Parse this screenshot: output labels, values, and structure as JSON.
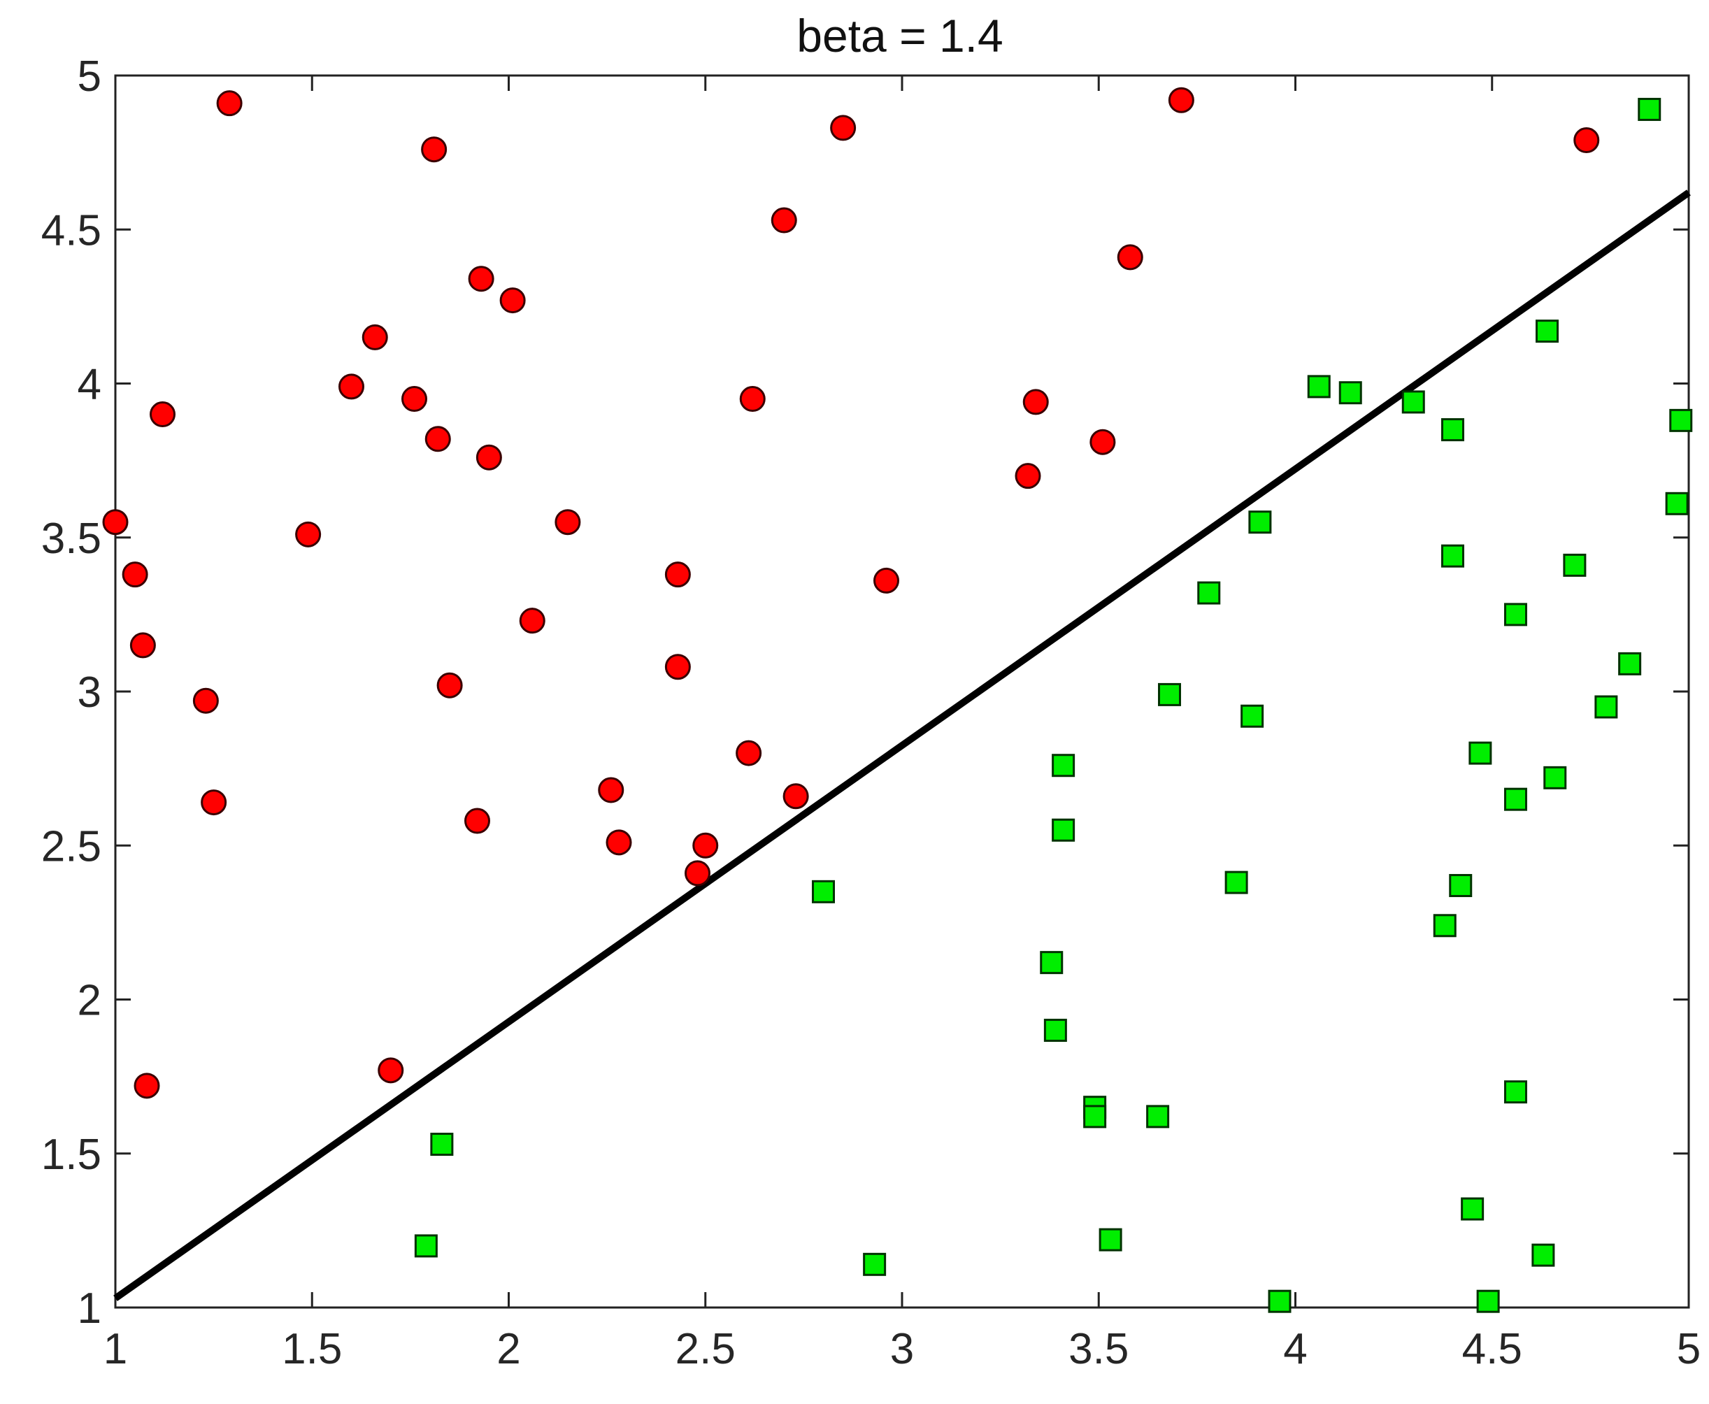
{
  "chart_data": {
    "type": "scatter",
    "title": "beta = 1.4",
    "xlabel": "",
    "ylabel": "",
    "xlim": [
      1,
      5
    ],
    "ylim": [
      1,
      5
    ],
    "xticks": [
      "1",
      "1.5",
      "2",
      "2.5",
      "3",
      "3.5",
      "4",
      "4.5",
      "5"
    ],
    "yticks": [
      "1",
      "1.5",
      "2",
      "2.5",
      "3",
      "3.5",
      "4",
      "4.5",
      "5"
    ],
    "grid": false,
    "legend": "none",
    "series": [
      {
        "marker": "circle",
        "color": "#ff0000",
        "points": [
          [
            1.29,
            4.91
          ],
          [
            1.81,
            4.76
          ],
          [
            2.85,
            4.83
          ],
          [
            3.71,
            4.92
          ],
          [
            4.74,
            4.79
          ],
          [
            2.7,
            4.53
          ],
          [
            1.93,
            4.34
          ],
          [
            2.01,
            4.27
          ],
          [
            3.58,
            4.41
          ],
          [
            1.66,
            4.15
          ],
          [
            1.6,
            3.99
          ],
          [
            1.76,
            3.95
          ],
          [
            1.12,
            3.9
          ],
          [
            2.62,
            3.95
          ],
          [
            3.34,
            3.94
          ],
          [
            1.82,
            3.82
          ],
          [
            1.95,
            3.76
          ],
          [
            3.51,
            3.81
          ],
          [
            3.32,
            3.7
          ],
          [
            1.0,
            3.55
          ],
          [
            1.49,
            3.51
          ],
          [
            2.15,
            3.55
          ],
          [
            1.05,
            3.38
          ],
          [
            2.43,
            3.38
          ],
          [
            2.96,
            3.36
          ],
          [
            2.06,
            3.23
          ],
          [
            1.07,
            3.15
          ],
          [
            2.43,
            3.08
          ],
          [
            1.85,
            3.02
          ],
          [
            1.23,
            2.97
          ],
          [
            2.61,
            2.8
          ],
          [
            2.26,
            2.68
          ],
          [
            2.73,
            2.66
          ],
          [
            1.25,
            2.64
          ],
          [
            1.92,
            2.58
          ],
          [
            2.28,
            2.51
          ],
          [
            2.5,
            2.5
          ],
          [
            2.48,
            2.41
          ],
          [
            1.7,
            1.77
          ],
          [
            1.08,
            1.72
          ]
        ]
      },
      {
        "marker": "square",
        "color": "#00ee00",
        "points": [
          [
            4.9,
            4.89
          ],
          [
            4.64,
            4.17
          ],
          [
            4.06,
            3.99
          ],
          [
            4.14,
            3.97
          ],
          [
            4.3,
            3.94
          ],
          [
            4.4,
            3.85
          ],
          [
            4.98,
            3.88
          ],
          [
            4.97,
            3.61
          ],
          [
            3.91,
            3.55
          ],
          [
            4.4,
            3.44
          ],
          [
            4.71,
            3.41
          ],
          [
            3.78,
            3.32
          ],
          [
            4.56,
            3.25
          ],
          [
            4.85,
            3.09
          ],
          [
            3.68,
            2.99
          ],
          [
            4.79,
            2.95
          ],
          [
            3.89,
            2.92
          ],
          [
            4.47,
            2.8
          ],
          [
            3.41,
            2.76
          ],
          [
            4.66,
            2.72
          ],
          [
            4.56,
            2.65
          ],
          [
            3.41,
            2.55
          ],
          [
            3.85,
            2.38
          ],
          [
            4.42,
            2.37
          ],
          [
            2.8,
            2.35
          ],
          [
            4.38,
            2.24
          ],
          [
            3.38,
            2.12
          ],
          [
            3.39,
            1.9
          ],
          [
            4.56,
            1.7
          ],
          [
            3.49,
            1.65
          ],
          [
            3.49,
            1.62
          ],
          [
            3.65,
            1.62
          ],
          [
            1.83,
            1.53
          ],
          [
            4.45,
            1.32
          ],
          [
            3.53,
            1.22
          ],
          [
            1.79,
            1.2
          ],
          [
            4.63,
            1.17
          ],
          [
            2.93,
            1.14
          ],
          [
            3.96,
            1.02
          ],
          [
            4.49,
            1.02
          ]
        ]
      }
    ],
    "lines": [
      {
        "color": "#000000",
        "x": [
          1,
          5
        ],
        "y": [
          1.03,
          4.62
        ]
      }
    ]
  }
}
